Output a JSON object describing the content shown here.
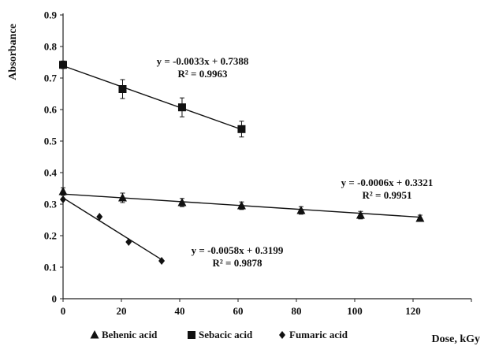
{
  "chart_data": {
    "type": "scatter",
    "xlabel": "Dose, kGy",
    "ylabel": "Absorbance",
    "xlim": [
      0,
      140
    ],
    "ylim": [
      0,
      0.9
    ],
    "x_ticks": [
      "0",
      "20",
      "40",
      "60",
      "80",
      "100",
      "120"
    ],
    "y_ticks": [
      "0",
      "0.1",
      "0.2",
      "0.3",
      "0.4",
      "0.5",
      "0.6",
      "0.7",
      "0.8",
      "0.9"
    ],
    "grid": false,
    "legend_position": "bottom",
    "series": [
      {
        "name": "Behenic acid",
        "marker": "triangle",
        "x": [
          0,
          20.4,
          40.8,
          61.2,
          81.6,
          102,
          122.4
        ],
        "y": [
          0.34,
          0.32,
          0.305,
          0.295,
          0.28,
          0.265,
          0.255
        ],
        "error": [
          0.012,
          0.015,
          0.013,
          0.012,
          0.012,
          0.012,
          0.01
        ],
        "trend": {
          "slope": -0.0006,
          "intercept": 0.3321,
          "x_range": [
            0,
            122.4
          ]
        },
        "equation": "y = -0.0006x + 0.3321",
        "r2": "R² = 0.9951"
      },
      {
        "name": "Sebacic acid",
        "marker": "square",
        "x": [
          0,
          20.4,
          40.8,
          61.2
        ],
        "y": [
          0.742,
          0.665,
          0.607,
          0.538
        ],
        "error": [
          0.012,
          0.03,
          0.03,
          0.025
        ],
        "trend": {
          "slope": -0.0033,
          "intercept": 0.7388,
          "x_range": [
            0,
            61.2
          ]
        },
        "equation": "y = -0.0033x + 0.7388",
        "r2": "R² = 0.9963"
      },
      {
        "name": "Fumaric acid",
        "marker": "diamond",
        "x": [
          0,
          12.5,
          22.5,
          33.8
        ],
        "y": [
          0.315,
          0.26,
          0.18,
          0.12
        ],
        "error": [],
        "trend": {
          "slope": -0.0058,
          "intercept": 0.3199,
          "x_range": [
            0,
            33.8
          ]
        },
        "equation": "y = -0.0058x + 0.3199",
        "r2": "R² = 0.9878"
      }
    ]
  }
}
